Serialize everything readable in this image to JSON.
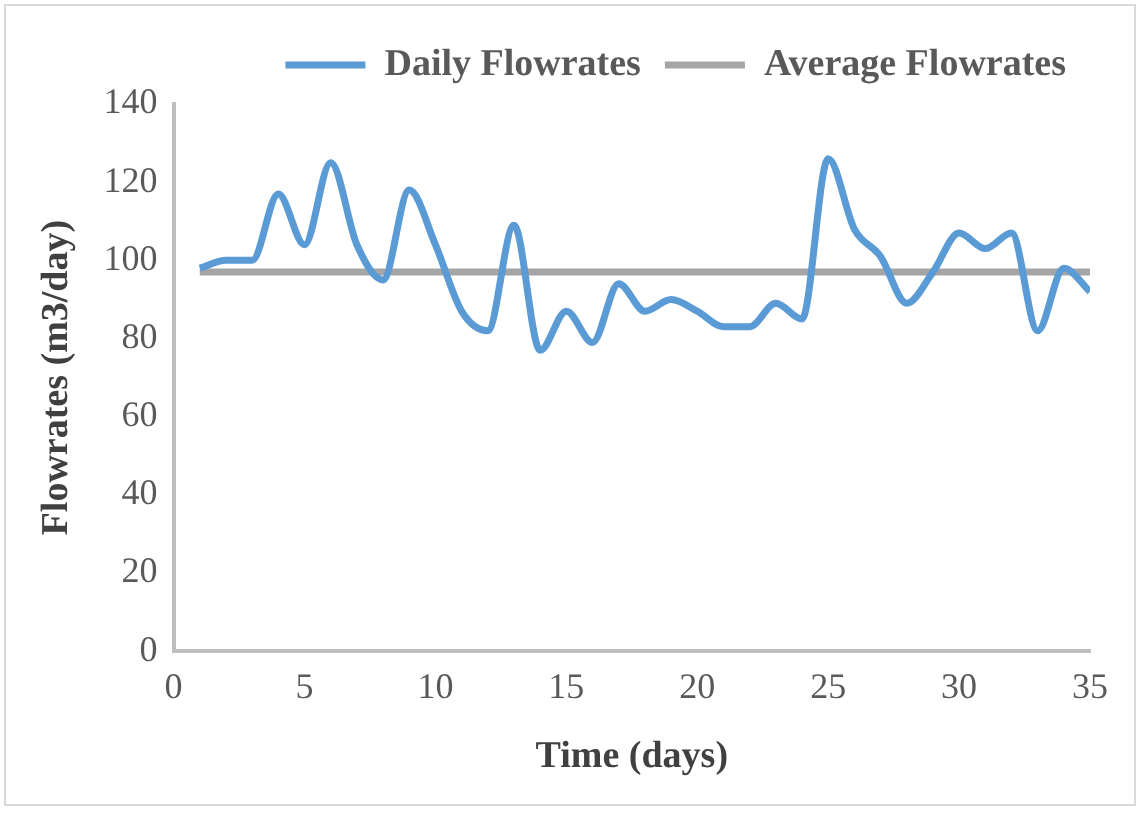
{
  "chart_data": {
    "type": "line",
    "xlabel": "Time (days)",
    "ylabel": "Flowrates (m3/day)",
    "xlim": [
      0,
      35
    ],
    "xticks": [
      0,
      5,
      10,
      15,
      20,
      25,
      30,
      35
    ],
    "ylim": [
      0,
      140
    ],
    "yticks": [
      0,
      20,
      40,
      60,
      80,
      100,
      120,
      140
    ],
    "grid": false,
    "legend": "top",
    "marker": "none",
    "series": [
      {
        "name": "Daily Flowrates",
        "color": "#5b9bd5",
        "x": [
          1,
          2,
          3,
          4,
          5,
          6,
          7,
          8,
          9,
          10,
          11,
          12,
          13,
          14,
          15,
          16,
          17,
          18,
          19,
          20,
          21,
          22,
          23,
          24,
          25,
          26,
          27,
          28,
          29,
          30,
          31,
          32,
          33,
          34,
          35
        ],
        "values": [
          98,
          100,
          100,
          117,
          104,
          125,
          104,
          95,
          118,
          104,
          87,
          82,
          109,
          77,
          87,
          79,
          94,
          87,
          90,
          87,
          83,
          83,
          89,
          85,
          126,
          108,
          101,
          89,
          97,
          107,
          103,
          107,
          82,
          98,
          92
        ]
      },
      {
        "name": "Average Flowrates",
        "color": "#a5a5a5",
        "x": [
          1,
          35
        ],
        "values": [
          97,
          97
        ]
      }
    ]
  }
}
